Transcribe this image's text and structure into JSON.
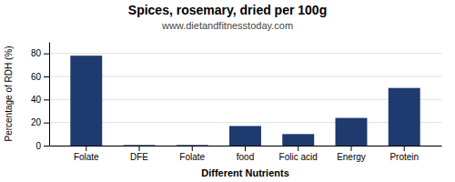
{
  "chart_data": {
    "type": "bar",
    "title": "Spices, rosemary, dried per 100g",
    "subtitle": "www.dietandfitnesstoday.com",
    "x_label": "Different Nutrients",
    "y_label": "Percentage of RDH (%)",
    "categories": [
      "Folate",
      "DFE",
      "Folate",
      "food",
      "Folic acid",
      "Energy",
      "Protein"
    ],
    "values": [
      78,
      0.5,
      0.5,
      17,
      10,
      24,
      50
    ],
    "color": "#1e3a6e",
    "ylim": [
      0,
      90
    ],
    "yticks": [
      0,
      20,
      40,
      60,
      80
    ],
    "grid": true
  }
}
